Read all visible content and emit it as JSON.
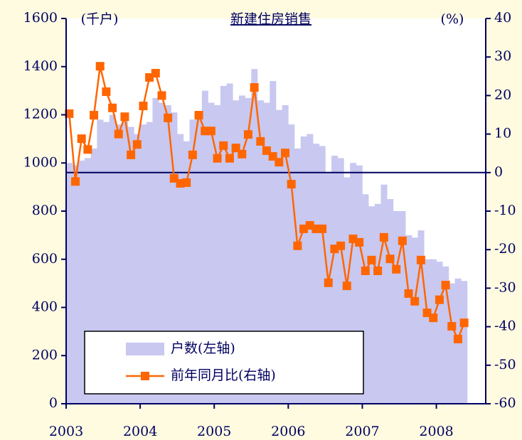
{
  "chart_data": {
    "type": "bar_line",
    "title": "新建住房销售",
    "y_label": "(千户)",
    "y2_label": "(%)",
    "categories": [
      "2003",
      null,
      null,
      null,
      null,
      null,
      null,
      null,
      null,
      null,
      null,
      null,
      "2004",
      null,
      null,
      null,
      null,
      null,
      null,
      null,
      null,
      null,
      null,
      null,
      "2005",
      null,
      null,
      null,
      null,
      null,
      null,
      null,
      null,
      null,
      null,
      null,
      "2006",
      null,
      null,
      null,
      null,
      null,
      null,
      null,
      null,
      null,
      null,
      null,
      "2007",
      null,
      null,
      null,
      null,
      null,
      null,
      null,
      null,
      null,
      null,
      null,
      "2008",
      null,
      null,
      null,
      null
    ],
    "series": [
      {
        "name": "户数(左轴)",
        "type": "bar",
        "color": "#c8c8f0",
        "axis": "y",
        "values": [
          1000,
          990,
          1010,
          1020,
          1060,
          1180,
          1170,
          1200,
          1160,
          1190,
          1150,
          1120,
          1160,
          1170,
          1270,
          1250,
          1240,
          1210,
          1120,
          1090,
          1180,
          1210,
          1300,
          1250,
          1240,
          1320,
          1330,
          1260,
          1280,
          1270,
          1390,
          1260,
          1250,
          1340,
          1220,
          1240,
          1160,
          1060,
          1110,
          1120,
          1080,
          1070,
          960,
          1030,
          1020,
          940,
          1000,
          990,
          870,
          820,
          830,
          910,
          850,
          800,
          800,
          700,
          690,
          720,
          600,
          600,
          590,
          570,
          500,
          520,
          510
        ]
      },
      {
        "name": "前年同月比(右轴)",
        "type": "line",
        "color": "#ff6600",
        "axis": "y2",
        "values": [
          15.3,
          -2.3,
          8.8,
          6,
          14.9,
          27.6,
          21,
          16.8,
          10,
          14.5,
          4.6,
          7.3,
          17.3,
          24.7,
          25.8,
          20,
          14.2,
          -1.5,
          -2.8,
          -2.6,
          4.6,
          14.9,
          10.8,
          10.8,
          3.7,
          7,
          3.7,
          6.4,
          4.8,
          9.9,
          22.1,
          8.1,
          5.7,
          4.2,
          2.7,
          5.1,
          -3,
          -19,
          -14.6,
          -13.7,
          -14.6,
          -14.6,
          -28.6,
          -19.8,
          -19,
          -29.4,
          -17.2,
          -18.1,
          -25.5,
          -22.7,
          -25.5,
          -16.8,
          -22.4,
          -25.1,
          -17.7,
          -31.4,
          -33.4,
          -22.7,
          -36.4,
          -37.7,
          -33,
          -29.2,
          -39.9,
          -43.2,
          -39
        ]
      }
    ],
    "ylim": [
      0,
      1600
    ],
    "yticks": [
      0,
      200,
      400,
      600,
      800,
      1000,
      1200,
      1400,
      1600
    ],
    "y2lim": [
      -60,
      40
    ],
    "y2ticks": [
      -60,
      -50,
      -40,
      -30,
      -20,
      -10,
      0,
      10,
      20,
      30,
      40
    ],
    "y2_reference_line": 0,
    "legend": "lower left"
  }
}
